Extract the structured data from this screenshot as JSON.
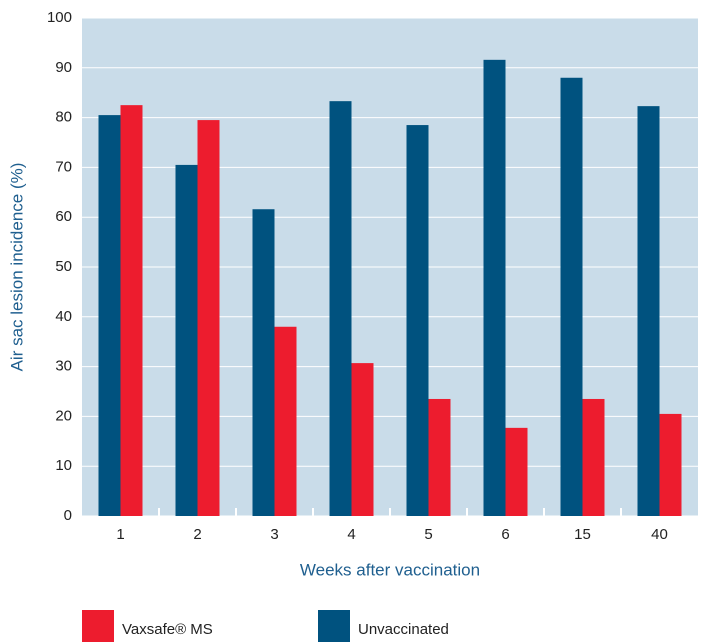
{
  "chart_data": {
    "type": "bar",
    "x_label": "Weeks after vaccination",
    "y_label": "Air sac lesion incidence (%)",
    "categories": [
      "1",
      "2",
      "3",
      "4",
      "5",
      "6",
      "15",
      "40"
    ],
    "series": [
      {
        "name": "Vaxsafe® MS",
        "color": "#ed1c2e",
        "values": [
          82.5,
          79.5,
          38,
          30.7,
          23.5,
          17.7,
          23.5,
          20.5
        ]
      },
      {
        "name": "Unvaccinated",
        "color": "#00527f",
        "values": [
          80.5,
          70.5,
          61.6,
          83.3,
          78.5,
          91.6,
          88,
          82.3
        ]
      }
    ],
    "ylim": [
      0,
      100
    ],
    "yticks": [
      0,
      10,
      20,
      30,
      40,
      50,
      60,
      70,
      80,
      90,
      100
    ],
    "grid": true,
    "legend": "bottom"
  }
}
